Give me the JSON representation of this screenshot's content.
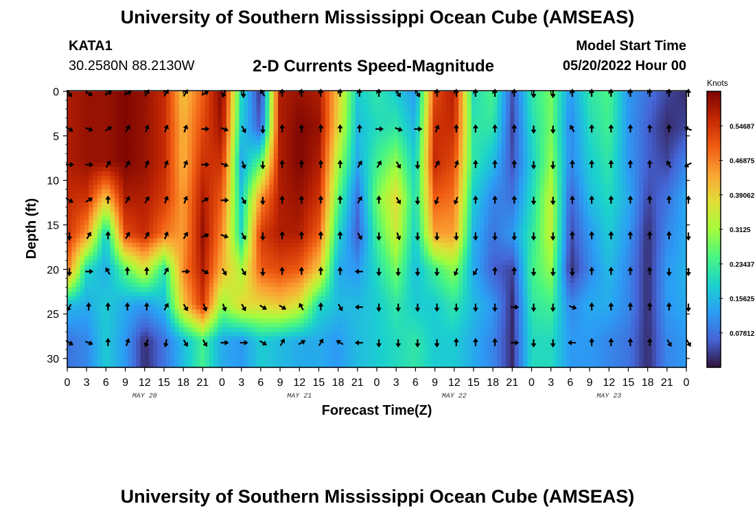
{
  "header": {
    "title": "University of Southern Mississippi Ocean Cube (AMSEAS)",
    "station": "KATA1",
    "coordinates": "30.2580N  88.2130W",
    "subtitle": "2-D Currents Speed-Magnitude",
    "model_start_label": "Model Start Time",
    "model_start_value": "05/20/2022 Hour 00"
  },
  "footer": {
    "title": "University of Southern Mississippi Ocean Cube (AMSEAS)"
  },
  "chart_data": {
    "type": "heatmap",
    "title": "2-D Currents Speed-Magnitude",
    "xlabel": "Forecast Time(Z)",
    "ylabel": "Depth (ft)",
    "x_hours": [
      0,
      3,
      6,
      9,
      12,
      15,
      18,
      21,
      24,
      27,
      30,
      33,
      36,
      39,
      42,
      45,
      48,
      51,
      54,
      57,
      60,
      63,
      66,
      69,
      72,
      75,
      78,
      81,
      84,
      87,
      90,
      93,
      96
    ],
    "x_tick_labels": [
      "0",
      "3",
      "6",
      "9",
      "12",
      "15",
      "18",
      "21",
      "0",
      "3",
      "6",
      "9",
      "12",
      "15",
      "18",
      "21",
      "0",
      "3",
      "6",
      "9",
      "12",
      "15",
      "18",
      "21",
      "0",
      "3",
      "6",
      "9",
      "12",
      "15",
      "18",
      "21",
      "0"
    ],
    "date_labels": [
      {
        "hour": 12,
        "label": "MAY 20"
      },
      {
        "hour": 36,
        "label": "MAY 21"
      },
      {
        "hour": 60,
        "label": "MAY 22"
      },
      {
        "hour": 84,
        "label": "MAY 23"
      }
    ],
    "depth_levels_ft": [
      0,
      4,
      8,
      12,
      16,
      20,
      24,
      28
    ],
    "ylim": [
      0,
      31
    ],
    "y_ticks": [
      0,
      5,
      10,
      15,
      20,
      25,
      30
    ],
    "colorbar": {
      "label": "Knots",
      "vmin": 0.0,
      "vmax": 0.625,
      "tick_values": [
        0.07812,
        0.15625,
        0.23437,
        0.3125,
        0.39062,
        0.46875,
        0.54687
      ],
      "tick_labels": [
        "0.07812",
        "0.15625",
        "0.23437",
        "0.3125",
        "0.39062",
        "0.46875",
        "0.54687"
      ]
    },
    "speed_knots_rows": [
      [
        0.58,
        0.6,
        0.6,
        0.62,
        0.6,
        0.56,
        0.4,
        0.5,
        0.62,
        0.2,
        0.02,
        0.58,
        0.6,
        0.58,
        0.4,
        0.18,
        0.22,
        0.18,
        0.12,
        0.52,
        0.58,
        0.2,
        0.25,
        0.05,
        0.22,
        0.28,
        0.12,
        0.22,
        0.25,
        0.12,
        0.08,
        0.04,
        0.02
      ],
      [
        0.58,
        0.6,
        0.6,
        0.62,
        0.6,
        0.56,
        0.42,
        0.52,
        0.6,
        0.18,
        0.05,
        0.58,
        0.62,
        0.6,
        0.38,
        0.16,
        0.2,
        0.22,
        0.15,
        0.55,
        0.56,
        0.22,
        0.22,
        0.04,
        0.2,
        0.28,
        0.1,
        0.2,
        0.24,
        0.12,
        0.06,
        0.02,
        0.04
      ],
      [
        0.58,
        0.6,
        0.6,
        0.62,
        0.6,
        0.56,
        0.42,
        0.55,
        0.55,
        0.14,
        0.26,
        0.58,
        0.62,
        0.58,
        0.32,
        0.14,
        0.24,
        0.3,
        0.18,
        0.56,
        0.52,
        0.22,
        0.16,
        0.05,
        0.18,
        0.3,
        0.1,
        0.18,
        0.22,
        0.12,
        0.06,
        0.04,
        0.1
      ],
      [
        0.56,
        0.55,
        0.4,
        0.58,
        0.58,
        0.54,
        0.44,
        0.58,
        0.5,
        0.18,
        0.45,
        0.58,
        0.6,
        0.55,
        0.26,
        0.08,
        0.28,
        0.38,
        0.2,
        0.5,
        0.48,
        0.18,
        0.1,
        0.08,
        0.2,
        0.34,
        0.06,
        0.16,
        0.2,
        0.14,
        0.04,
        0.08,
        0.14
      ],
      [
        0.55,
        0.45,
        0.18,
        0.52,
        0.56,
        0.48,
        0.44,
        0.6,
        0.46,
        0.2,
        0.54,
        0.58,
        0.58,
        0.5,
        0.2,
        0.06,
        0.24,
        0.35,
        0.18,
        0.44,
        0.44,
        0.15,
        0.08,
        0.12,
        0.22,
        0.34,
        0.04,
        0.12,
        0.18,
        0.12,
        0.02,
        0.1,
        0.14
      ],
      [
        0.48,
        0.2,
        0.14,
        0.26,
        0.36,
        0.22,
        0.46,
        0.58,
        0.42,
        0.32,
        0.5,
        0.52,
        0.5,
        0.4,
        0.14,
        0.12,
        0.2,
        0.28,
        0.16,
        0.24,
        0.3,
        0.14,
        0.06,
        0.04,
        0.24,
        0.3,
        0.02,
        0.1,
        0.16,
        0.1,
        0.02,
        0.12,
        0.15
      ],
      [
        0.16,
        0.14,
        0.18,
        0.14,
        0.12,
        0.16,
        0.4,
        0.54,
        0.3,
        0.38,
        0.38,
        0.4,
        0.36,
        0.2,
        0.16,
        0.16,
        0.18,
        0.22,
        0.18,
        0.18,
        0.22,
        0.16,
        0.12,
        0.02,
        0.22,
        0.24,
        0.1,
        0.14,
        0.14,
        0.1,
        0.02,
        0.12,
        0.14
      ],
      [
        0.08,
        0.1,
        0.18,
        0.12,
        0.02,
        0.08,
        0.16,
        0.24,
        0.14,
        0.12,
        0.18,
        0.16,
        0.14,
        0.14,
        0.12,
        0.16,
        0.18,
        0.2,
        0.22,
        0.18,
        0.18,
        0.14,
        0.1,
        0.02,
        0.2,
        0.2,
        0.12,
        0.12,
        0.1,
        0.08,
        0.02,
        0.1,
        0.12
      ]
    ],
    "current_direction_deg_rows": [
      [
        150,
        120,
        60,
        60,
        30,
        30,
        30,
        60,
        200,
        180,
        330,
        0,
        0,
        0,
        0,
        0,
        0,
        150,
        150,
        0,
        0,
        0,
        0,
        0,
        180,
        180,
        0,
        0,
        0,
        0,
        0,
        0,
        0
      ],
      [
        120,
        110,
        60,
        30,
        20,
        20,
        20,
        90,
        110,
        150,
        180,
        0,
        0,
        0,
        0,
        0,
        90,
        110,
        90,
        20,
        0,
        0,
        0,
        0,
        180,
        180,
        330,
        0,
        0,
        0,
        0,
        0,
        290
      ],
      [
        90,
        90,
        30,
        30,
        20,
        20,
        20,
        90,
        110,
        160,
        180,
        0,
        0,
        0,
        0,
        30,
        30,
        150,
        180,
        30,
        20,
        0,
        0,
        0,
        180,
        180,
        0,
        0,
        0,
        0,
        0,
        330,
        240
      ],
      [
        120,
        60,
        0,
        30,
        30,
        20,
        20,
        60,
        90,
        150,
        180,
        0,
        0,
        0,
        0,
        30,
        0,
        150,
        180,
        200,
        200,
        0,
        0,
        0,
        180,
        180,
        0,
        0,
        0,
        0,
        0,
        0,
        0
      ],
      [
        180,
        30,
        0,
        30,
        30,
        20,
        30,
        70,
        110,
        150,
        180,
        0,
        0,
        0,
        0,
        150,
        180,
        160,
        180,
        180,
        180,
        180,
        180,
        180,
        180,
        180,
        0,
        0,
        0,
        0,
        0,
        0,
        180
      ],
      [
        180,
        90,
        330,
        0,
        0,
        30,
        90,
        120,
        150,
        150,
        180,
        0,
        0,
        0,
        0,
        270,
        180,
        180,
        180,
        180,
        200,
        210,
        0,
        0,
        180,
        180,
        180,
        0,
        0,
        0,
        0,
        180,
        180
      ],
      [
        210,
        0,
        0,
        0,
        0,
        30,
        150,
        160,
        160,
        150,
        120,
        120,
        330,
        0,
        150,
        270,
        180,
        180,
        180,
        180,
        180,
        180,
        180,
        90,
        180,
        180,
        110,
        0,
        0,
        0,
        0,
        0,
        180
      ],
      [
        120,
        110,
        0,
        20,
        200,
        190,
        150,
        150,
        90,
        90,
        120,
        30,
        60,
        30,
        300,
        270,
        180,
        180,
        180,
        180,
        0,
        0,
        0,
        90,
        180,
        180,
        270,
        0,
        0,
        0,
        0,
        150,
        150
      ]
    ]
  }
}
